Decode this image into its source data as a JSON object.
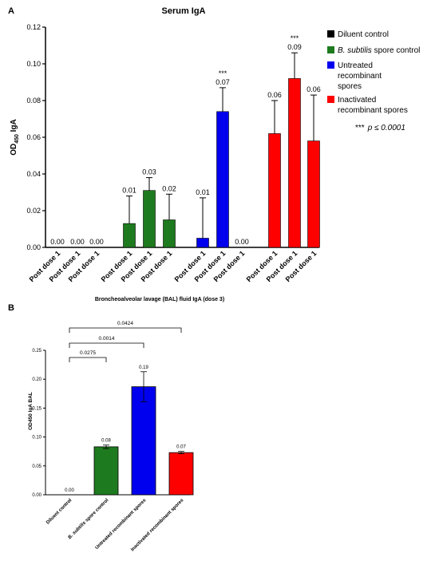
{
  "panel_a": {
    "label": "A",
    "significance_note_stars": "***",
    "significance_note_text": "p ≤ 0.0001"
  },
  "panel_b": {
    "label": "B"
  },
  "colors": {
    "diluent": "#000000",
    "bsubtilis": "#1e7a1e",
    "untreated": "#0000ee",
    "inactivated": "#ff0000"
  },
  "chart_data": [
    {
      "type": "bar",
      "title": "Serum IgA",
      "ylabel_main": "OD",
      "ylabel_sub": "450",
      "ylabel_rest": " IgA",
      "ylim": [
        0,
        0.12
      ],
      "yticks": [
        "0.00",
        "0.02",
        "0.04",
        "0.06",
        "0.08",
        "0.10",
        "0.12"
      ],
      "grid": false,
      "legend_position": "right",
      "legend": [
        {
          "label": "Diluent control",
          "color": "#000000"
        },
        {
          "label_italic": "B. subtilis",
          "label": " spore control",
          "color": "#1e7a1e"
        },
        {
          "label": "Untreated",
          "label2": "recombinant",
          "label3": "spores",
          "color": "#0000ee"
        },
        {
          "label": "Inactivated recombinant spores",
          "color": "#ff0000"
        }
      ],
      "categories": [
        "Post dose 1",
        "Post dose 1",
        "Post dose 1",
        "Post dose 1",
        "Post dose 1",
        "Post dose 1",
        "Post dose 1",
        "Post dose 1",
        "Post dose 1",
        "Post dose 1",
        "Post dose 1",
        "Post dose 1"
      ],
      "values": [
        0.0,
        0.0,
        0.0,
        0.013,
        0.031,
        0.015,
        0.005,
        0.074,
        0.0,
        0.062,
        0.092,
        0.058
      ],
      "error_upper": [
        0.0,
        0.0,
        0.0,
        0.028,
        0.038,
        0.029,
        0.027,
        0.087,
        0.0,
        0.08,
        0.106,
        0.083
      ],
      "value_labels": [
        "0.00",
        "0.00",
        "0.00",
        "0.01",
        "0.03",
        "0.02",
        "0.01",
        "0.07",
        "0.00",
        "0.06",
        "0.09",
        "0.06"
      ],
      "groups": [
        "diluent",
        "diluent",
        "diluent",
        "bsubtilis",
        "bsubtilis",
        "bsubtilis",
        "untreated",
        "untreated",
        "untreated",
        "inactivated",
        "inactivated",
        "inactivated"
      ],
      "annotations": [
        {
          "bar": 7,
          "text": "***"
        },
        {
          "bar": 10,
          "text": "***"
        }
      ]
    },
    {
      "type": "bar",
      "title": "Broncheoalveolar lavage (BAL) fluid IgA  (dose 3)",
      "ylabel": "OD450 IgA BAL",
      "ylim": [
        0,
        0.25
      ],
      "yticks": [
        "0.00",
        "0.05",
        "0.10",
        "0.15",
        "0.20",
        "0.25"
      ],
      "grid": false,
      "categories": [
        "Diluent control",
        "B. subtilis spore control",
        "Untreated recombinant spores",
        "Inactivated recombinant spores"
      ],
      "values": [
        0.0,
        0.083,
        0.187,
        0.073
      ],
      "error_upper": [
        0.0,
        0.086,
        0.213,
        0.075
      ],
      "error_lower": [
        0.0,
        0.08,
        0.161,
        0.071
      ],
      "value_labels": [
        "0.00",
        "0.08",
        "0.19",
        "0.07"
      ],
      "groups": [
        "diluent",
        "bsubtilis",
        "untreated",
        "inactivated"
      ],
      "comparisons": [
        {
          "from": 0,
          "to": 1,
          "p": "0.0275"
        },
        {
          "from": 0,
          "to": 2,
          "p": "0.0014"
        },
        {
          "from": 0,
          "to": 3,
          "p": "0.0424"
        }
      ]
    }
  ]
}
